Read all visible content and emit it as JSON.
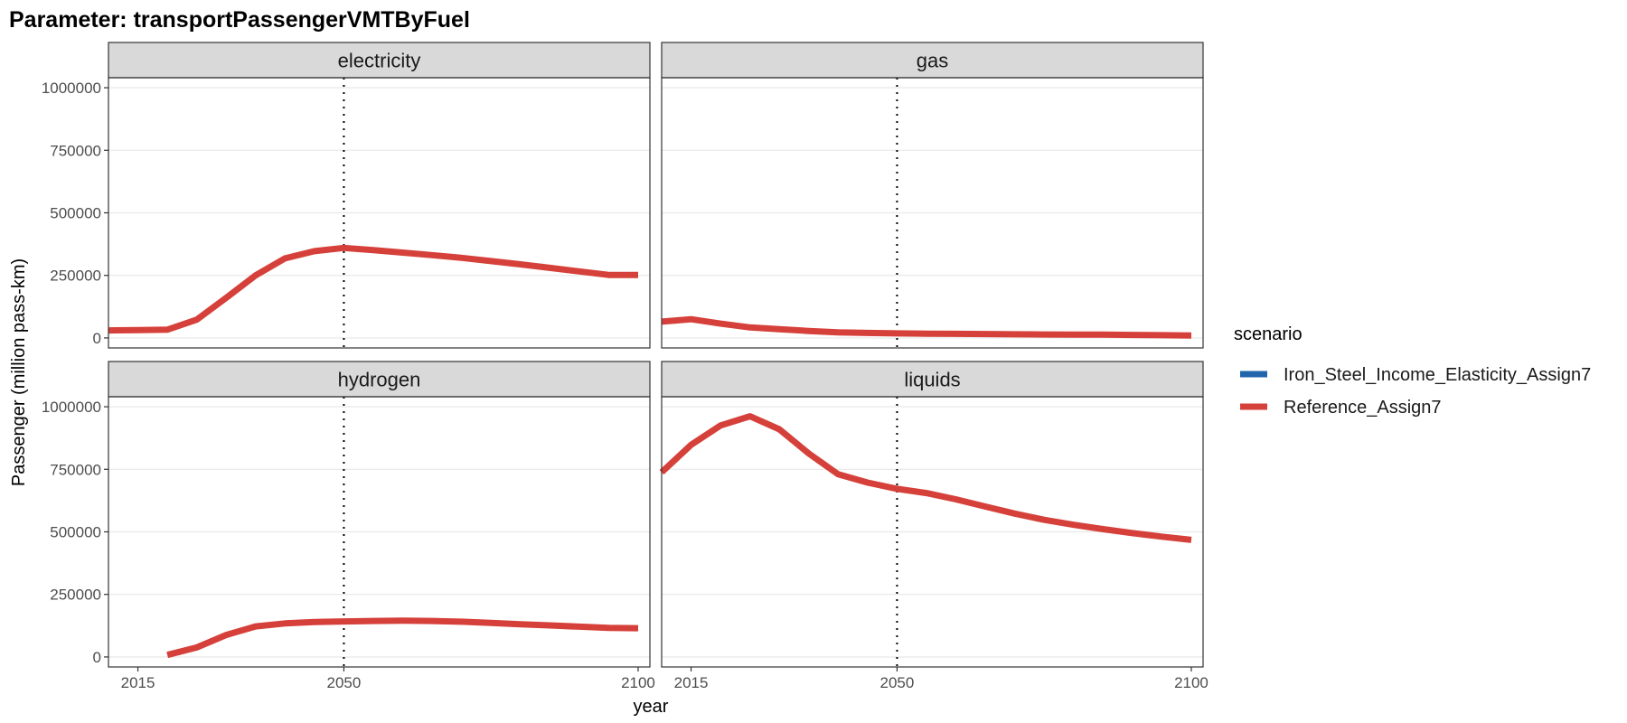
{
  "title": "Parameter: transportPassengerVMTByFuel",
  "chart_data": {
    "type": "line",
    "title": "Parameter: transportPassengerVMTByFuel",
    "xlabel": "year",
    "ylabel": "Passenger (million pass-km)",
    "xlim": [
      2010,
      2102
    ],
    "ylim": [
      -40000,
      1040000
    ],
    "x_ticks": [
      2015,
      2050,
      2100
    ],
    "y_ticks": [
      0,
      250000,
      500000,
      750000,
      1000000
    ],
    "reference_line_x": 2050,
    "grid": true,
    "legend": {
      "title": "scenario",
      "placement": "right",
      "entries": [
        {
          "name": "Iron_Steel_Income_Elasticity_Assign7",
          "color": "#2166ac"
        },
        {
          "name": "Reference_Assign7",
          "color": "#d6403a"
        }
      ]
    },
    "panels": [
      {
        "facet": "electricity",
        "series": [
          {
            "name": "Reference_Assign7",
            "x": [
              2010,
              2015,
              2020,
              2025,
              2030,
              2035,
              2040,
              2045,
              2050,
              2055,
              2060,
              2065,
              2070,
              2075,
              2080,
              2085,
              2090,
              2095,
              2100
            ],
            "y": [
              30000,
              31000,
              33000,
              73000,
              160000,
              250000,
              318000,
              347000,
              360000,
              351000,
              341000,
              331000,
              320000,
              307000,
              294000,
              280000,
              266000,
              252000,
              252000
            ]
          }
        ]
      },
      {
        "facet": "gas",
        "series": [
          {
            "name": "Reference_Assign7",
            "x": [
              2010,
              2015,
              2020,
              2025,
              2030,
              2035,
              2040,
              2045,
              2050,
              2055,
              2060,
              2065,
              2070,
              2075,
              2080,
              2085,
              2090,
              2095,
              2100
            ],
            "y": [
              65000,
              75000,
              57000,
              42000,
              35000,
              28000,
              22000,
              20000,
              18000,
              17000,
              16500,
              15500,
              14500,
              14000,
              13500,
              13000,
              12000,
              11000,
              10000
            ]
          }
        ]
      },
      {
        "facet": "hydrogen",
        "series": [
          {
            "name": "Reference_Assign7",
            "x": [
              2020,
              2025,
              2030,
              2035,
              2040,
              2045,
              2050,
              2055,
              2060,
              2065,
              2070,
              2075,
              2080,
              2085,
              2090,
              2095,
              2100
            ],
            "y": [
              8000,
              38000,
              88000,
              122000,
              134000,
              140000,
              142000,
              144000,
              145000,
              144000,
              141000,
              136000,
              131000,
              126000,
              121000,
              116000,
              115000
            ]
          }
        ]
      },
      {
        "facet": "liquids",
        "series": [
          {
            "name": "Reference_Assign7",
            "x": [
              2010,
              2015,
              2020,
              2025,
              2030,
              2035,
              2040,
              2045,
              2050,
              2055,
              2060,
              2065,
              2070,
              2075,
              2080,
              2085,
              2090,
              2095,
              2100
            ],
            "y": [
              738000,
              848000,
              925000,
              962000,
              910000,
              813000,
              730000,
              697000,
              672000,
              655000,
              630000,
              601000,
              573000,
              548000,
              528000,
              511000,
              495000,
              481000,
              468000
            ]
          }
        ]
      }
    ]
  }
}
